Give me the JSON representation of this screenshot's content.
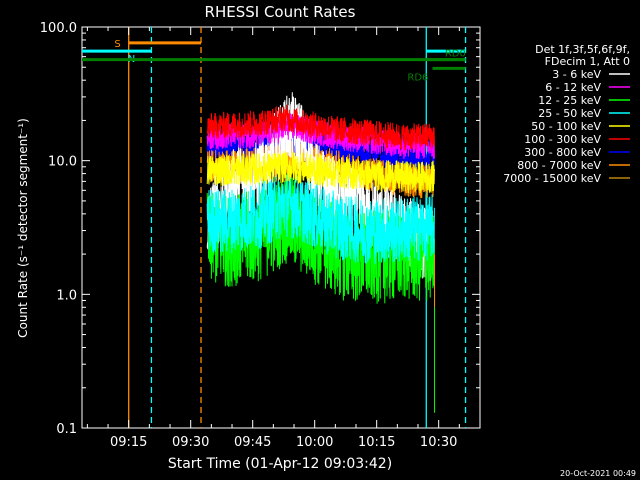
{
  "chart_data": {
    "type": "line",
    "title": "RHESSI Count Rates",
    "xlabel": "Start Time (01-Apr-12 09:03:42)",
    "ylabel": "Count Rate (s⁻¹ detector segment⁻¹)",
    "yscale": "log",
    "ylim": [
      0.1,
      100.0
    ],
    "xlim_minutes_after_0900": [
      3.7,
      47.0
    ],
    "x_ticks": [
      {
        "t": 15,
        "label": "09:15"
      },
      {
        "t": 30,
        "label": "09:30"
      },
      {
        "t": 45,
        "label": "09:45"
      },
      {
        "t": 60,
        "label": "10:00"
      },
      {
        "t": 75,
        "label": "10:15"
      },
      {
        "t": 90,
        "label": "10:30"
      }
    ],
    "y_ticks": [
      {
        "v": 0.1,
        "label": "0.1"
      },
      {
        "v": 1.0,
        "label": "1.0"
      },
      {
        "v": 10.0,
        "label": "10.0"
      },
      {
        "v": 100.0,
        "label": "100.0"
      }
    ],
    "legend": {
      "position": "right",
      "header": [
        "Det 1f,3f,5f,6f,9f,",
        "FDecim 1, Att 0"
      ],
      "entries": [
        {
          "label": "3 - 6 keV",
          "color": "#ffffff"
        },
        {
          "label": "6 - 12 keV",
          "color": "#ff00ff"
        },
        {
          "label": "12 - 25 keV",
          "color": "#00ff00"
        },
        {
          "label": "25 - 50 keV",
          "color": "#00ffff"
        },
        {
          "label": "50 - 100 keV",
          "color": "#ffff00"
        },
        {
          "label": "100 - 300 keV",
          "color": "#ff0000"
        },
        {
          "label": "300 - 800 keV",
          "color": "#0000ff"
        },
        {
          "label": "800 - 7000 keV",
          "color": "#ff8c00"
        },
        {
          "label": "7000 - 15000 keV",
          "color": "#b8860b"
        }
      ]
    },
    "flag_bars": [
      {
        "label": "S",
        "color": "#ff8c00",
        "t_start": 15.0,
        "t_end": 32.5,
        "level": 76
      },
      {
        "label": "N",
        "color": "#00ffff",
        "t_start": 3.7,
        "t_end": 20.5,
        "level": 66
      },
      {
        "label": "",
        "color": "#00ffff",
        "t_start": 87.0,
        "t_end": 96.5,
        "level": 66
      },
      {
        "label": "",
        "color": "#008000",
        "t_start": 3.7,
        "t_end": 96.5,
        "level": 57
      },
      {
        "label": "RD0",
        "color": "#008000",
        "t_start": 87.0,
        "t_end": 96.5,
        "level": 57
      },
      {
        "label": "RD6",
        "color": "#008000",
        "t_start": 88.5,
        "t_end": 96.5,
        "level": 49
      }
    ],
    "vertical_markers": [
      {
        "t": 15.0,
        "color": "#ff8c00",
        "style": "solid"
      },
      {
        "t": 20.5,
        "color": "#00ffff",
        "style": "dashed"
      },
      {
        "t": 32.5,
        "color": "#ff8c00",
        "style": "dashed"
      },
      {
        "t": 87.0,
        "color": "#00ffff",
        "style": "solid"
      },
      {
        "t": 96.5,
        "color": "#00ffff",
        "style": "dashed"
      }
    ],
    "data_window": {
      "t_start": 34.0,
      "t_end": 89.0
    },
    "series": [
      {
        "name": "3 - 6 keV",
        "color": "#ffffff",
        "times": [
          34,
          38,
          42,
          45,
          48,
          51,
          54,
          56,
          58,
          60,
          63,
          66,
          69,
          72,
          75,
          78,
          81,
          84,
          86,
          89
        ],
        "values": [
          3.4,
          5.0,
          7.5,
          6.8,
          9.0,
          13.0,
          17.5,
          16.0,
          12.0,
          7.5,
          6.0,
          5.2,
          4.8,
          4.0,
          3.8,
          3.4,
          3.0,
          2.7,
          2.5,
          2.3
        ]
      },
      {
        "name": "6 - 12 keV",
        "color": "#ff00ff",
        "times": [
          34,
          40,
          46,
          50,
          54,
          58,
          62,
          66,
          70,
          74,
          78,
          82,
          86,
          89
        ],
        "values": [
          15.0,
          15.5,
          15.5,
          16.5,
          18.0,
          17.0,
          16.0,
          15.0,
          14.5,
          14.0,
          13.5,
          13.0,
          12.8,
          12.5
        ]
      },
      {
        "name": "12 - 25 keV",
        "color": "#00ff00",
        "times": [
          34,
          38,
          42,
          46,
          50,
          53,
          55,
          58,
          61,
          64,
          67,
          70,
          74,
          78,
          82,
          86,
          89
        ],
        "values": [
          2.6,
          2.5,
          2.6,
          2.7,
          3.2,
          3.7,
          3.4,
          2.9,
          2.5,
          2.2,
          2.0,
          1.9,
          1.9,
          1.9,
          2.0,
          1.9,
          2.0
        ]
      },
      {
        "name": "25 - 50 keV",
        "color": "#00ffff",
        "times": [
          34,
          38,
          42,
          46,
          50,
          53,
          56,
          59,
          62,
          65,
          68,
          72,
          76,
          80,
          84,
          89
        ],
        "values": [
          3.6,
          3.5,
          3.7,
          3.8,
          4.3,
          4.8,
          4.5,
          4.0,
          3.6,
          3.3,
          3.1,
          3.0,
          3.0,
          3.0,
          3.1,
          3.2
        ]
      },
      {
        "name": "50 - 100 keV",
        "color": "#ffff00",
        "times": [
          34,
          44,
          54,
          64,
          74,
          84,
          89
        ],
        "values": [
          8.5,
          8.6,
          9.0,
          8.3,
          7.8,
          7.5,
          7.6
        ]
      },
      {
        "name": "100 - 300 keV",
        "color": "#ff0000",
        "times": [
          34,
          40,
          46,
          50,
          53,
          55,
          58,
          62,
          66,
          70,
          74,
          78,
          82,
          86,
          89
        ],
        "values": [
          18.0,
          18.5,
          19.0,
          20.0,
          21.0,
          20.0,
          19.0,
          18.0,
          17.0,
          16.5,
          16.0,
          15.5,
          15.0,
          15.2,
          15.5
        ]
      },
      {
        "name": "300 - 800 keV",
        "color": "#0000ff",
        "times": [
          34,
          40,
          46,
          50,
          54,
          58,
          62,
          66,
          70,
          74,
          78,
          82,
          86,
          89
        ],
        "values": [
          12.0,
          12.2,
          12.5,
          13.0,
          14.0,
          13.5,
          12.5,
          12.0,
          11.5,
          11.0,
          10.8,
          10.5,
          10.5,
          10.4
        ]
      },
      {
        "name": "800 - 7000 keV",
        "color": "#ff8c00",
        "times": [
          34,
          40,
          46,
          50,
          54,
          58,
          62,
          66,
          70,
          74,
          78,
          82,
          86,
          89
        ],
        "values": [
          9.0,
          9.2,
          9.5,
          10.0,
          10.8,
          10.2,
          9.5,
          8.8,
          8.2,
          7.8,
          7.5,
          7.2,
          7.0,
          7.0
        ]
      },
      {
        "name": "7000 - 15000 keV",
        "color": "#b8860b",
        "times": [
          34,
          89
        ],
        "values": [
          0.0,
          0.0
        ]
      }
    ]
  },
  "footer": {
    "timestamp": "20-Oct-2021 00:49"
  }
}
